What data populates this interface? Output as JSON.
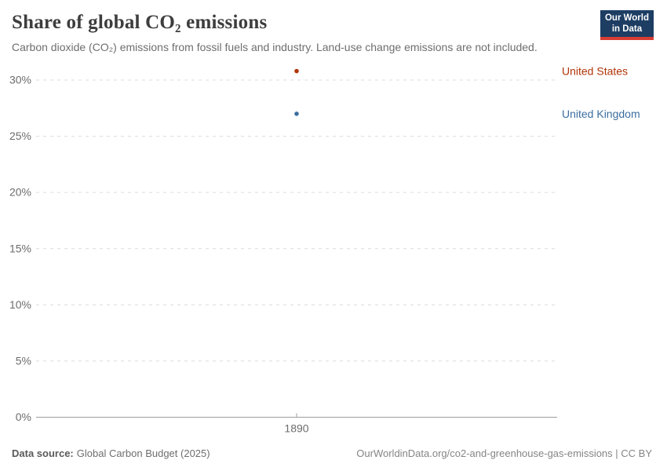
{
  "header": {
    "title": "Share of global CO₂ emissions",
    "subtitle": "Carbon dioxide (CO₂) emissions from fossil fuels and industry. Land-use change emissions are not included.",
    "logo": {
      "line1": "Our World",
      "line2": "in Data",
      "bg_color": "#1d3d63",
      "stripe_color": "#d93c32"
    }
  },
  "chart_data": {
    "type": "scatter",
    "title": "Share of global CO₂ emissions",
    "xlabel": "",
    "ylabel": "",
    "x": [
      1890
    ],
    "series": [
      {
        "name": "United States",
        "color": "#B13507",
        "values": [
          30.8
        ]
      },
      {
        "name": "United Kingdom",
        "color": "#3C6E9F",
        "values": [
          27.0
        ]
      }
    ],
    "ylim": [
      0,
      30
    ],
    "yticks": [
      0,
      5,
      10,
      15,
      20,
      25,
      30
    ],
    "ytick_labels": [
      "0%",
      "5%",
      "10%",
      "15%",
      "20%",
      "25%",
      "30%"
    ],
    "xticks": [
      1890
    ],
    "xtick_labels": [
      "1890"
    ],
    "grid": "horizontal dashed",
    "gridline_color": "#dcdcdc",
    "axis_line_color": "#9e9e9e",
    "tick_label_color": "#6c6c6c",
    "legend_position": "right"
  },
  "footer": {
    "source_label": "Data source:",
    "source_value": "Global Carbon Budget (2025)",
    "link": "OurWorldinData.org/co2-and-greenhouse-gas-emissions | CC BY"
  }
}
